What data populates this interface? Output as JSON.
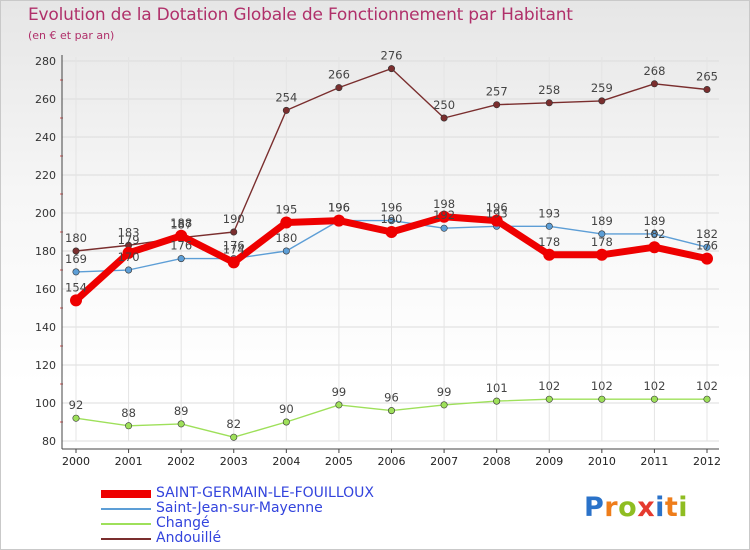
{
  "header": {
    "title": "Evolution de la Dotation Globale de Fonctionnement par Habitant",
    "subtitle": "(en € et par an)"
  },
  "logo": {
    "text": "Proxiti",
    "colors": [
      "#2a72c9",
      "#ee7d1a",
      "#8fbd22",
      "#e53a2f",
      "#2a72c9",
      "#ee7d1a",
      "#8fbd22"
    ]
  },
  "chart_data": {
    "type": "line",
    "title": "Evolution de la Dotation Globale de Fonctionnement par Habitant",
    "subtitle": "(en € et par an)",
    "xlabel": "",
    "ylabel": "",
    "ylim": [
      80,
      280
    ],
    "yticks": [
      80,
      100,
      120,
      140,
      160,
      180,
      200,
      220,
      240,
      260,
      280
    ],
    "grid": true,
    "legend_position": "bottom-left",
    "categories": [
      "2000",
      "2001",
      "2002",
      "2003",
      "2004",
      "2005",
      "2006",
      "2007",
      "2008",
      "2009",
      "2010",
      "2011",
      "2012"
    ],
    "series": [
      {
        "name": "SAINT-GERMAIN-LE-FOUILLOUX",
        "color": "#ee0000",
        "legend_text_color": "#3344dd",
        "values": [
          154,
          179,
          188,
          174,
          195,
          196,
          190,
          198,
          196,
          178,
          178,
          182,
          176
        ],
        "labels": [
          "154",
          "179",
          "188",
          "174",
          "195",
          "196",
          "190",
          "198",
          "196",
          "178",
          "178",
          "182",
          "176"
        ]
      },
      {
        "name": "Saint-Jean-sur-Mayenne",
        "color": "#5d9ed6",
        "legend_text_color": "#3344dd",
        "values": [
          169,
          170,
          176,
          176,
          180,
          196,
          196,
          192,
          193,
          193,
          189,
          189,
          182
        ],
        "labels": [
          "169",
          "170",
          "176",
          "176",
          "180",
          "196",
          "196",
          "192",
          "193",
          "193",
          "189",
          "189",
          "182"
        ]
      },
      {
        "name": "Changé",
        "color": "#9ee05a",
        "legend_text_color": "#3344dd",
        "values": [
          92,
          88,
          89,
          82,
          90,
          99,
          96,
          99,
          101,
          102,
          102,
          102,
          102
        ],
        "labels": [
          "92",
          "88",
          "89",
          "82",
          "90",
          "99",
          "96",
          "99",
          "101",
          "102",
          "102",
          "102",
          "102"
        ]
      },
      {
        "name": "Andouillé",
        "color": "#7a2e2e",
        "legend_text_color": "#3344dd",
        "values": [
          180,
          183,
          187,
          190,
          254,
          266,
          276,
          250,
          257,
          258,
          259,
          268,
          265
        ],
        "labels": [
          "180",
          "183",
          "187",
          "190",
          "254",
          "266",
          "276",
          "250",
          "257",
          "258",
          "259",
          "268",
          "265"
        ]
      }
    ]
  }
}
